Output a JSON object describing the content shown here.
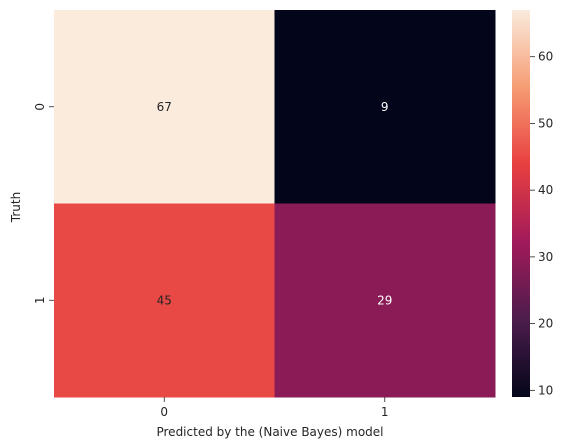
{
  "chart_data": {
    "type": "heatmap",
    "title": "",
    "xlabel": "Predicted by the (Naive Bayes) model",
    "ylabel": "Truth",
    "x_categories": [
      "0",
      "1"
    ],
    "y_categories": [
      "0",
      "1"
    ],
    "matrix": [
      [
        67,
        9
      ],
      [
        45,
        29
      ]
    ],
    "cell_labels": [
      [
        "67",
        "9"
      ],
      [
        "45",
        "29"
      ]
    ],
    "colorbar": {
      "range": [
        9,
        67
      ],
      "ticks": [
        10,
        20,
        30,
        40,
        50,
        60
      ],
      "tick_labels": [
        "10",
        "20",
        "30",
        "40",
        "50",
        "60"
      ],
      "colormap": "rocket",
      "stops": [
        "#03051a",
        "#4c1d4b",
        "#a11a5b",
        "#e83f3f",
        "#f69c73",
        "#faebdd"
      ]
    },
    "grid": false,
    "legend": "none"
  }
}
